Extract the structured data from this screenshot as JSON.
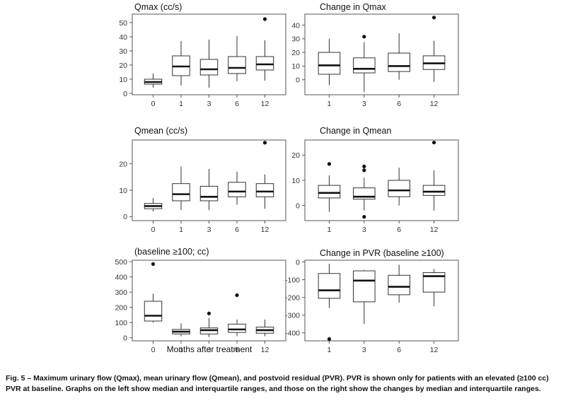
{
  "figure": {
    "x_axis_label": "Months after treatment",
    "caption_bold": "Fig. 5 – Maximum urinary flow (Qmax), mean urinary flow (Qmean), and postvoid residual (PVR). PVR is shown only for patients with an elevated (≥100 cc) PVR at baseline. Graphs on the left show median and interquartile ranges, and those on the right show the changes by median and interquartile ranges."
  },
  "chart_data": [
    {
      "id": "qmax",
      "type": "box",
      "title": "Qmax (cc/s)",
      "categories": [
        "0",
        "1",
        "3",
        "6",
        "12"
      ],
      "ylim": [
        -1,
        56
      ],
      "yticks": [
        0,
        10,
        20,
        30,
        40,
        50
      ],
      "boxes": [
        {
          "whislo": 4,
          "q1": 6.5,
          "med": 8,
          "q3": 10,
          "whishi": 14,
          "fliers": []
        },
        {
          "whislo": 5.5,
          "q1": 12.5,
          "med": 19,
          "q3": 26.5,
          "whishi": 37,
          "fliers": []
        },
        {
          "whislo": 4,
          "q1": 13,
          "med": 17,
          "q3": 24,
          "whishi": 38,
          "fliers": []
        },
        {
          "whislo": 8.5,
          "q1": 14,
          "med": 18,
          "q3": 26,
          "whishi": 40.5,
          "fliers": []
        },
        {
          "whislo": 9,
          "q1": 16.5,
          "med": 20.5,
          "q3": 26,
          "whishi": 37.5,
          "fliers": [
            52.5
          ]
        }
      ]
    },
    {
      "id": "change-qmax",
      "type": "box",
      "title": "Change in Qmax",
      "categories": [
        "1",
        "3",
        "6",
        "12"
      ],
      "ylim": [
        -11,
        48
      ],
      "yticks": [
        0,
        10,
        20,
        30,
        40
      ],
      "boxes": [
        {
          "whislo": -4,
          "q1": 4,
          "med": 10.5,
          "q3": 20,
          "whishi": 30,
          "fliers": []
        },
        {
          "whislo": -9,
          "q1": 5,
          "med": 8,
          "q3": 16,
          "whishi": 27.5,
          "fliers": [
            31.5
          ]
        },
        {
          "whislo": 0,
          "q1": 6,
          "med": 10,
          "q3": 19.5,
          "whishi": 34,
          "fliers": []
        },
        {
          "whislo": -1.5,
          "q1": 7.5,
          "med": 12,
          "q3": 17.5,
          "whishi": 28.5,
          "fliers": [
            45.5
          ]
        }
      ]
    },
    {
      "id": "qmean",
      "type": "box",
      "title": "Qmean (cc/s)",
      "categories": [
        "0",
        "1",
        "3",
        "6",
        "12"
      ],
      "ylim": [
        -1.5,
        29
      ],
      "yticks": [
        0,
        10,
        20
      ],
      "boxes": [
        {
          "whislo": 2,
          "q1": 3,
          "med": 4,
          "q3": 5,
          "whishi": 7,
          "fliers": []
        },
        {
          "whislo": 2.5,
          "q1": 6,
          "med": 8.5,
          "q3": 12.5,
          "whishi": 19,
          "fliers": []
        },
        {
          "whislo": 2.5,
          "q1": 6,
          "med": 7.5,
          "q3": 11.5,
          "whishi": 18,
          "fliers": []
        },
        {
          "whislo": 4.5,
          "q1": 7.5,
          "med": 9.5,
          "q3": 13,
          "whishi": 17,
          "fliers": []
        },
        {
          "whislo": 3,
          "q1": 7.5,
          "med": 9.5,
          "q3": 12.5,
          "whishi": 16,
          "fliers": [
            28
          ]
        }
      ]
    },
    {
      "id": "change-qmean",
      "type": "box",
      "title": "Change in Qmean",
      "categories": [
        "1",
        "3",
        "6",
        "12"
      ],
      "ylim": [
        -6,
        26
      ],
      "yticks": [
        0,
        10,
        20
      ],
      "boxes": [
        {
          "whislo": -2.5,
          "q1": 3,
          "med": 5,
          "q3": 8,
          "whishi": 12,
          "fliers": [
            16.5
          ]
        },
        {
          "whislo": -2,
          "q1": 2.5,
          "med": 3.5,
          "q3": 7,
          "whishi": 11,
          "fliers": [
            15.5,
            14,
            -4.5
          ]
        },
        {
          "whislo": 0,
          "q1": 3.5,
          "med": 6,
          "q3": 10,
          "whishi": 15,
          "fliers": []
        },
        {
          "whislo": -2,
          "q1": 4,
          "med": 5.5,
          "q3": 8,
          "whishi": 14,
          "fliers": [
            25
          ]
        }
      ]
    },
    {
      "id": "pvr",
      "type": "box",
      "title": "(baseline ≥100; cc)",
      "categories": [
        "0",
        "1",
        "3",
        "6",
        "12"
      ],
      "ylim": [
        -20,
        510
      ],
      "yticks": [
        0,
        100,
        200,
        300,
        400,
        500
      ],
      "boxes": [
        {
          "whislo": 100,
          "q1": 110,
          "med": 145,
          "q3": 240,
          "whishi": 290,
          "fliers": [
            485
          ]
        },
        {
          "whislo": 10,
          "q1": 25,
          "med": 40,
          "q3": 55,
          "whishi": 95,
          "fliers": []
        },
        {
          "whislo": 5,
          "q1": 25,
          "med": 50,
          "q3": 65,
          "whishi": 130,
          "fliers": [
            160
          ]
        },
        {
          "whislo": 10,
          "q1": 35,
          "med": 55,
          "q3": 90,
          "whishi": 120,
          "fliers": [
            280
          ]
        },
        {
          "whislo": 10,
          "q1": 30,
          "med": 50,
          "q3": 70,
          "whishi": 120,
          "fliers": []
        }
      ]
    },
    {
      "id": "change-pvr",
      "type": "box",
      "title": "Change in PVR (baseline ≥100)",
      "categories": [
        "1",
        "3",
        "6",
        "12"
      ],
      "ylim": [
        -445,
        10
      ],
      "yticks": [
        0,
        -100,
        -200,
        -300,
        -400
      ],
      "boxes": [
        {
          "whislo": -260,
          "q1": -205,
          "med": -160,
          "q3": -65,
          "whishi": -10,
          "fliers": [
            -435
          ]
        },
        {
          "whislo": -350,
          "q1": -225,
          "med": -105,
          "q3": -50,
          "whishi": -45,
          "fliers": []
        },
        {
          "whislo": -230,
          "q1": -185,
          "med": -140,
          "q3": -75,
          "whishi": -15,
          "fliers": []
        },
        {
          "whislo": -250,
          "q1": -170,
          "med": -80,
          "q3": -60,
          "whishi": -40,
          "fliers": []
        }
      ]
    }
  ]
}
